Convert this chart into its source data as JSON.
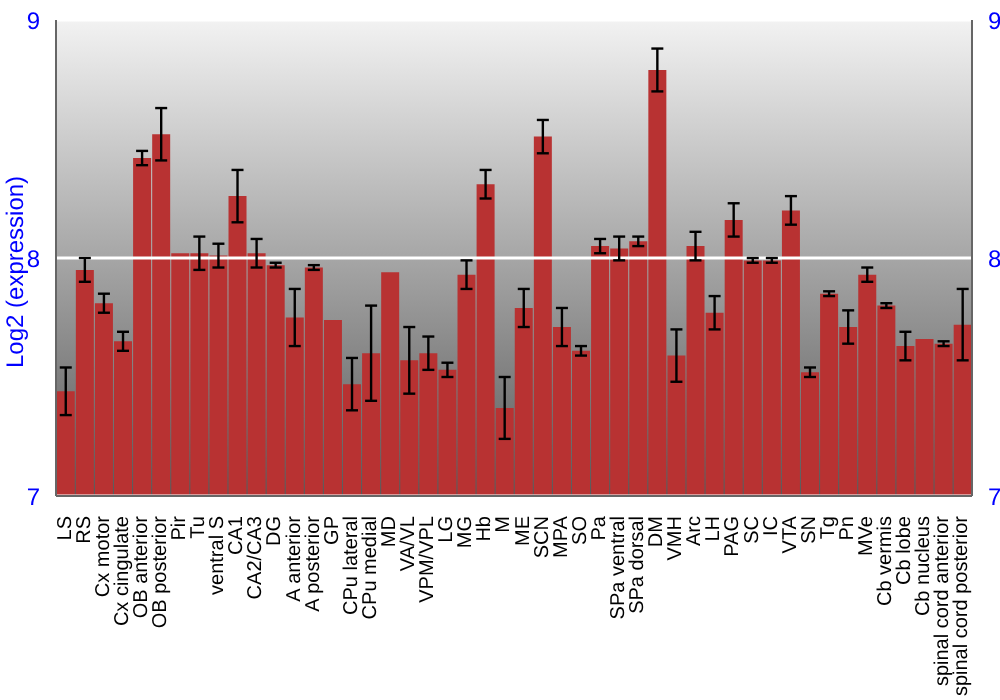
{
  "chart_data": {
    "type": "bar",
    "ylabel": "Log2 (expression)",
    "categories": [
      "LS",
      "RS",
      "Cx motor",
      "Cx cingulate",
      "OB anterior",
      "OB posterior",
      "Pir",
      "Tu",
      "ventral S",
      "CA1",
      "CA2/CA3",
      "DG",
      "A anterior",
      "A posterior",
      "GP",
      "CPu lateral",
      "CPu medial",
      "MD",
      "VA/VL",
      "VPM/VPL",
      "LG",
      "MG",
      "Hb",
      "M",
      "ME",
      "SCN",
      "MPA",
      "SO",
      "Pa",
      "SPa ventral",
      "SPa dorsal",
      "DM",
      "VMH",
      "Arc",
      "LH",
      "PAG",
      "SC",
      "IC",
      "VTA",
      "SN",
      "Tg",
      "Pn",
      "MVe",
      "Cb vermis",
      "Cb lobe",
      "Cb nucleus",
      "spinal cord anterior",
      "spinal cord posterior"
    ],
    "values": [
      7.44,
      7.95,
      7.81,
      7.65,
      8.42,
      8.52,
      8.02,
      8.02,
      8.01,
      8.26,
      8.02,
      7.97,
      7.75,
      7.96,
      7.74,
      7.47,
      7.6,
      7.94,
      7.57,
      7.6,
      7.53,
      7.93,
      8.31,
      7.37,
      7.79,
      8.51,
      7.71,
      7.61,
      8.05,
      8.04,
      8.07,
      8.79,
      7.59,
      8.05,
      7.77,
      8.16,
      7.99,
      7.99,
      8.2,
      7.52,
      7.85,
      7.71,
      7.93,
      7.8,
      7.63,
      7.66,
      7.64,
      7.72
    ],
    "errors": [
      0.1,
      0.05,
      0.04,
      0.04,
      0.03,
      0.11,
      null,
      0.07,
      0.05,
      0.11,
      0.06,
      0.01,
      0.12,
      0.01,
      null,
      0.11,
      0.2,
      null,
      0.14,
      0.07,
      0.03,
      0.06,
      0.06,
      0.13,
      0.08,
      0.07,
      0.08,
      0.02,
      0.03,
      0.05,
      0.02,
      0.09,
      0.11,
      0.06,
      0.07,
      0.07,
      0.01,
      0.01,
      0.06,
      0.02,
      0.01,
      0.07,
      0.03,
      0.01,
      0.06,
      null,
      0.01,
      0.15
    ],
    "color": "#b83232",
    "ylim": [
      7,
      9
    ],
    "yticks": [
      7,
      8,
      9
    ],
    "y2lim": [
      7,
      9
    ],
    "y2ticks": [
      7,
      8,
      9
    ],
    "grid": "y"
  }
}
